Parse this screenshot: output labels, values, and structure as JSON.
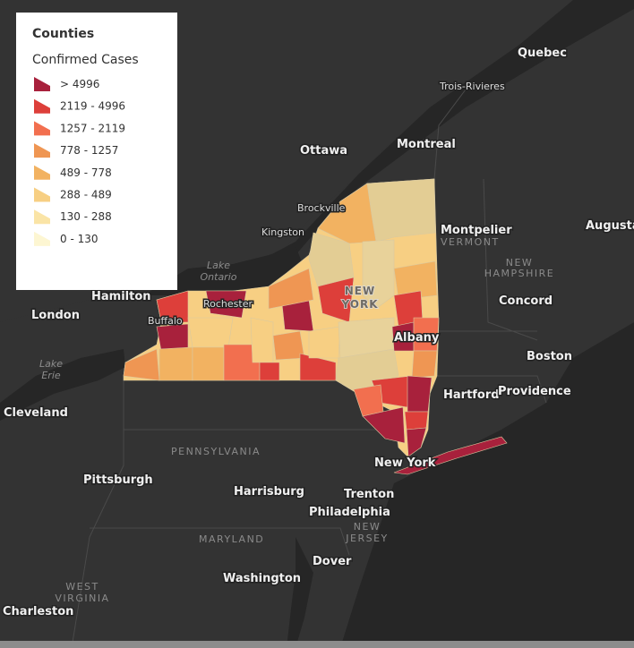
{
  "legend": {
    "title": "Counties",
    "subtitle": "Confirmed Cases",
    "items": [
      {
        "label": "> 4996",
        "color": "#a8213c"
      },
      {
        "label": "2119 - 4996",
        "color": "#dd3f3a"
      },
      {
        "label": "1257 - 2119",
        "color": "#f26f4f"
      },
      {
        "label": "778 - 1257",
        "color": "#ef9653"
      },
      {
        "label": "489 - 778",
        "color": "#f2b261"
      },
      {
        "label": "288 - 489",
        "color": "#f7cf83"
      },
      {
        "label": "130 - 288",
        "color": "#fae4a6"
      },
      {
        "label": "0 - 130",
        "color": "#fdf6d2"
      }
    ]
  },
  "places": {
    "quebec": "Quebec",
    "trois_rivieres": "Trois-Rivieres",
    "ottawa": "Ottawa",
    "montreal": "Montreal",
    "brockville": "Brockville",
    "kingston": "Kingston",
    "montpelier": "Montpelier",
    "vermont": "VERMONT",
    "augusta": "Augusta",
    "new_hampshire": [
      "NEW",
      "HAMPSHIRE"
    ],
    "lake_ontario": [
      "Lake",
      "Ontario"
    ],
    "hamilton": "Hamilton",
    "london": "London",
    "buffalo": "Buffalo",
    "rochester": "Rochester",
    "new_york_state": [
      "NEW",
      "YORK"
    ],
    "concord": "Concord",
    "albany": "Albany",
    "boston": "Boston",
    "lake_erie": [
      "Lake",
      "Erie"
    ],
    "cleveland": "Cleveland",
    "hartford": "Hartford",
    "providence": "Providence",
    "pennsylvania": "PENNSYLVANIA",
    "new_york_city": "New York",
    "pittsburgh": "Pittsburgh",
    "harrisburg": "Harrisburg",
    "trenton": "Trenton",
    "philadelphia": "Philadelphia",
    "new_jersey": [
      "NEW",
      "JERSEY"
    ],
    "maryland": "MARYLAND",
    "dover": "Dover",
    "washington": "Washington",
    "west_virginia": [
      "WEST",
      "VIRGINIA"
    ],
    "charleston": "Charleston"
  }
}
